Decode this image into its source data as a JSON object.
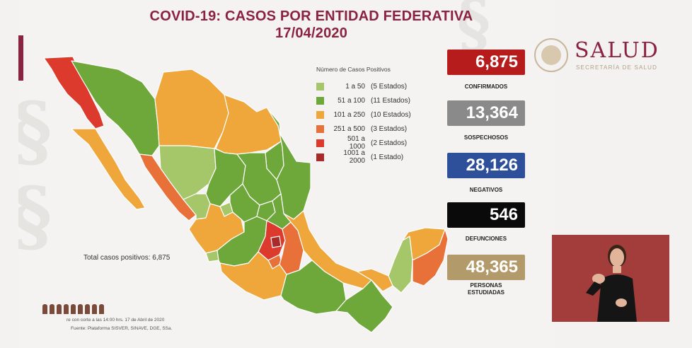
{
  "title": {
    "line1": "COVID-19: CASOS POR ENTIDAD FEDERATIVA",
    "line2": "17/04/2020"
  },
  "legend": {
    "title": "Número de Casos Positivos",
    "items": [
      {
        "range": "1 a 50",
        "count": "(5 Estados)",
        "color": "#a6c66a"
      },
      {
        "range": "51 a 100",
        "count": "(11 Estados)",
        "color": "#6ea73a"
      },
      {
        "range": "101 a 250",
        "count": "(10 Estados)",
        "color": "#efa63a"
      },
      {
        "range": "251 a 500",
        "count": "(3 Estados)",
        "color": "#e8713a"
      },
      {
        "range": "501 a 1000",
        "count": "(2 Estados)",
        "color": "#dc3a2c"
      },
      {
        "range": "1001 a 2000",
        "count": "(1 Estado)",
        "color": "#a82a2a"
      }
    ]
  },
  "total": "Total casos positivos: 6,875",
  "footnote": {
    "line1": "re con corte a las 14:00 hrs. 17 de Abril de 2020",
    "line2": "Fuente: Plataforma SISVER, SINAVE, DGE, SSa."
  },
  "stats": [
    {
      "value": "6,875",
      "label": "CONFIRMADOS",
      "color": "#b71c1c"
    },
    {
      "value": "13,364",
      "label": "SOSPECHOSOS",
      "color": "#8a8a8a"
    },
    {
      "value": "28,126",
      "label": "NEGATIVOS",
      "color": "#2e4f9a"
    },
    {
      "value": "546",
      "label": "DEFUNCIONES",
      "color": "#0a0a0a"
    },
    {
      "value": "48,365",
      "label1": "PERSONAS",
      "label2": "ESTUDIADAS",
      "color": "#b39a6a"
    }
  ],
  "brand": {
    "name": "SALUD",
    "sub": "SECRETARÍA DE SALUD",
    "seal_text": "ESTADOS UNIDOS MEXICANOS"
  }
}
